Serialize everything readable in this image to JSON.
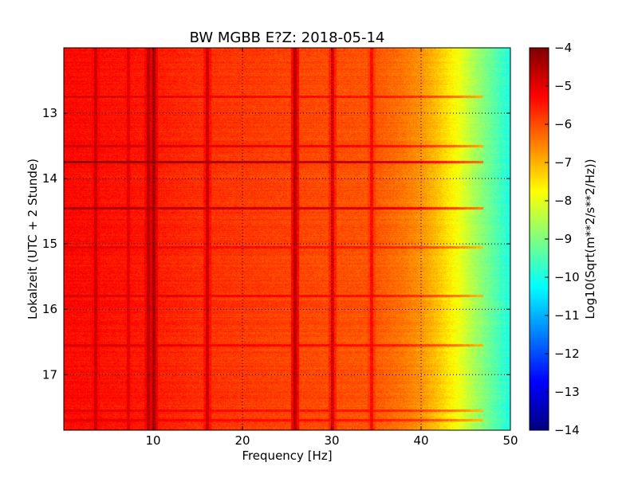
{
  "chart_data": {
    "type": "heatmap",
    "title": "BW MGBB E?Z: 2018-05-14",
    "xlabel": "Frequency [Hz]",
    "ylabel": "Lokalzeit (UTC + 2 Stunde)",
    "xlim": [
      0,
      50
    ],
    "ylim": [
      12.0,
      17.85
    ],
    "y_inverted": true,
    "x_ticks": [
      10,
      20,
      30,
      40,
      50
    ],
    "y_ticks": [
      13,
      14,
      15,
      16,
      17
    ],
    "grid": true,
    "colormap": "jet",
    "colorbar": {
      "label": "Log10(Sqrt(m**2/s**2/Hz))",
      "range": [
        -14,
        -4
      ],
      "ticks": [
        -4,
        -5,
        -6,
        -7,
        -8,
        -9,
        -10,
        -11,
        -12,
        -13,
        -14
      ]
    },
    "spectral_profile": {
      "frequency_hz": [
        0,
        5,
        10,
        15,
        20,
        25,
        30,
        35,
        38,
        40,
        42,
        44,
        46,
        48,
        50
      ],
      "log_amplitude": [
        -5.3,
        -5.4,
        -5.5,
        -5.7,
        -5.8,
        -5.9,
        -6.0,
        -6.1,
        -6.4,
        -6.7,
        -7.2,
        -7.8,
        -8.6,
        -9.3,
        -10.0
      ]
    },
    "vertical_lines_hz": [
      {
        "freq": 3.6,
        "level": -4.8
      },
      {
        "freq": 7.2,
        "level": -5.0
      },
      {
        "freq": 9.5,
        "level": -4.6
      },
      {
        "freq": 10.1,
        "level": -4.5
      },
      {
        "freq": 16.1,
        "level": -4.8
      },
      {
        "freq": 25.9,
        "level": -4.6
      },
      {
        "freq": 30.1,
        "level": -5.0
      },
      {
        "freq": 34.5,
        "level": -5.3
      }
    ],
    "horizontal_bands_hour": [
      {
        "time": 12.75,
        "level": -4.9
      },
      {
        "time": 13.5,
        "level": -4.8
      },
      {
        "time": 13.75,
        "level": -4.2
      },
      {
        "time": 14.45,
        "level": -4.4
      },
      {
        "time": 15.05,
        "level": -5.0
      },
      {
        "time": 15.8,
        "level": -4.9
      },
      {
        "time": 16.55,
        "level": -4.9
      },
      {
        "time": 17.55,
        "level": -5.0
      },
      {
        "time": 17.7,
        "level": -5.0
      }
    ]
  }
}
